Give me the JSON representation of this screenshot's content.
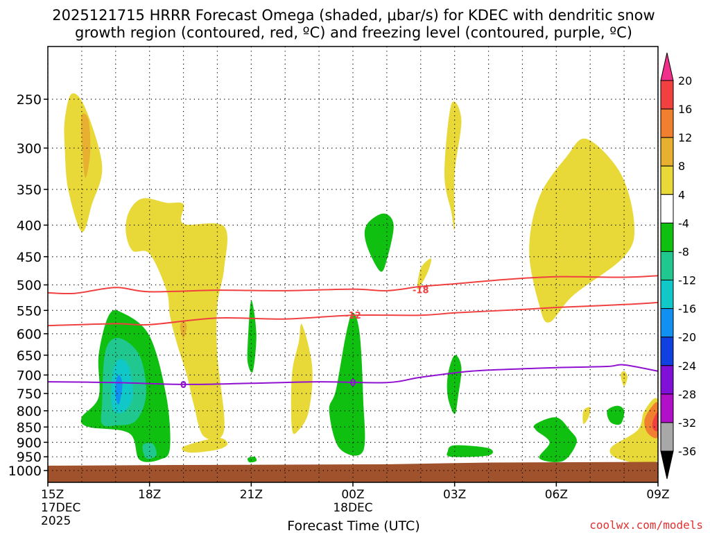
{
  "chart_data": {
    "type": "heatmap",
    "title_line1": "2025121715 HRRR Forecast Omega (shaded, μbar/s) for KDEC with dendritic snow",
    "title_line2": "growth region (contoured, red, ºC) and freezing level (contoured, purple, ºC)",
    "xlabel": "Forecast Time (UTC)",
    "watermark": "coolwx.com/models",
    "x_range_hours": [
      15,
      33
    ],
    "x_ticks": [
      {
        "hour": 15,
        "label": "15Z",
        "sub1": "17DEC",
        "sub2": "2025"
      },
      {
        "hour": 18,
        "label": "18Z"
      },
      {
        "hour": 21,
        "label": "21Z"
      },
      {
        "hour": 24,
        "label": "00Z",
        "sub1": "18DEC"
      },
      {
        "hour": 27,
        "label": "03Z"
      },
      {
        "hour": 30,
        "label": "06Z"
      },
      {
        "hour": 33,
        "label": "09Z"
      }
    ],
    "y_ticks": [
      250,
      300,
      350,
      400,
      450,
      500,
      550,
      600,
      650,
      700,
      750,
      800,
      850,
      900,
      950,
      1000
    ],
    "colorbar": {
      "labels": [
        "20",
        "16",
        "12",
        "8",
        "4",
        "-4",
        "-8",
        "-12",
        "-16",
        "-20",
        "-24",
        "-28",
        "-32",
        "-36"
      ],
      "colors": [
        "#f0308a",
        "#f04040",
        "#f08030",
        "#e8b030",
        "#e8d838",
        "#ffffff",
        "#10c010",
        "#20c890",
        "#10c8c8",
        "#1090f0",
        "#1040e0",
        "#8010d8",
        "#b010c8",
        "#a8a8a8",
        "#000000"
      ]
    },
    "contours": [
      {
        "name": "isotherm-minus18",
        "label": "-18",
        "color": "#f04040",
        "points": [
          [
            15,
            515
          ],
          [
            15.8,
            516
          ],
          [
            17,
            505
          ],
          [
            18,
            513
          ],
          [
            20,
            510
          ],
          [
            22,
            511
          ],
          [
            24,
            508
          ],
          [
            25,
            511
          ],
          [
            26,
            503
          ],
          [
            27,
            498
          ],
          [
            28.5,
            490
          ],
          [
            30,
            485
          ],
          [
            32,
            486
          ],
          [
            33,
            483
          ]
        ],
        "label_at": [
          26,
          509
        ]
      },
      {
        "name": "isotherm-minus12",
        "label": "-12",
        "color": "#f04040",
        "points": [
          [
            15,
            582
          ],
          [
            17,
            578
          ],
          [
            18,
            580
          ],
          [
            20,
            566
          ],
          [
            22,
            568
          ],
          [
            24,
            560
          ],
          [
            26,
            560
          ],
          [
            27,
            555
          ],
          [
            29,
            548
          ],
          [
            30,
            544
          ],
          [
            32,
            538
          ],
          [
            33,
            534
          ]
        ],
        "label_at": [
          24,
          560
        ]
      },
      {
        "name": "freezing-level",
        "label": "0",
        "color": "#9010d0",
        "points": [
          [
            15,
            718
          ],
          [
            17,
            720
          ],
          [
            19,
            725
          ],
          [
            21,
            722
          ],
          [
            23,
            718
          ],
          [
            25,
            720
          ],
          [
            26,
            706
          ],
          [
            27.5,
            690
          ],
          [
            29,
            684
          ],
          [
            30,
            681
          ],
          [
            31.5,
            678
          ],
          [
            32,
            674
          ],
          [
            33,
            690
          ]
        ],
        "label_at": [
          19,
          725
        ],
        "label_at2": [
          24,
          720
        ]
      }
    ],
    "shaded_regions": [
      {
        "value": 4,
        "color": "#e8d838",
        "points": [
          [
            15.5,
            270
          ],
          [
            15.7,
            245
          ],
          [
            16.1,
            258
          ],
          [
            16.6,
            320
          ],
          [
            16.3,
            370
          ],
          [
            16.0,
            410
          ],
          [
            15.6,
            350
          ],
          [
            15.5,
            300
          ]
        ]
      },
      {
        "value": 8,
        "color": "#e8b030",
        "points": [
          [
            16.0,
            290
          ],
          [
            16.0,
            265
          ],
          [
            16.2,
            270
          ],
          [
            16.25,
            305
          ],
          [
            16.1,
            335
          ]
        ]
      },
      {
        "value": 4,
        "color": "#e8d838",
        "points": [
          [
            17.4,
            380
          ],
          [
            17.8,
            362
          ],
          [
            18.5,
            368
          ],
          [
            19.0,
            370
          ],
          [
            19.0,
            398
          ],
          [
            20.2,
            402
          ],
          [
            20.2,
            470
          ],
          [
            20.0,
            540
          ],
          [
            20.0,
            650
          ],
          [
            20.2,
            860
          ],
          [
            19.6,
            880
          ],
          [
            19.3,
            780
          ],
          [
            19.1,
            700
          ],
          [
            18.8,
            620
          ],
          [
            18.6,
            560
          ],
          [
            18.5,
            510
          ],
          [
            18.0,
            445
          ],
          [
            17.5,
            440
          ],
          [
            17.3,
            410
          ]
        ]
      },
      {
        "value": 4,
        "color": "#e8d838",
        "points": [
          [
            19.0,
            915
          ],
          [
            20.0,
            885
          ],
          [
            20.3,
            905
          ],
          [
            20.0,
            925
          ],
          [
            19.2,
            935
          ]
        ]
      },
      {
        "value": 8,
        "color": "#e8b030",
        "points": [
          [
            19.0,
            570
          ],
          [
            19.1,
            585
          ],
          [
            19.0,
            610
          ],
          [
            18.9,
            585
          ]
        ]
      },
      {
        "value": -4,
        "color": "#10c010",
        "points": [
          [
            16.5,
            650
          ],
          [
            16.8,
            560
          ],
          [
            17.2,
            555
          ],
          [
            18.0,
            605
          ],
          [
            18.5,
            760
          ],
          [
            18.6,
            920
          ],
          [
            18.3,
            960
          ],
          [
            17.7,
            960
          ],
          [
            17.4,
            870
          ],
          [
            16.2,
            850
          ],
          [
            16.0,
            820
          ],
          [
            16.5,
            760
          ]
        ]
      },
      {
        "value": -8,
        "color": "#20c890",
        "points": [
          [
            16.6,
            780
          ],
          [
            16.7,
            640
          ],
          [
            17.1,
            610
          ],
          [
            17.7,
            650
          ],
          [
            17.9,
            750
          ],
          [
            17.6,
            830
          ],
          [
            17.0,
            845
          ],
          [
            16.6,
            840
          ]
        ]
      },
      {
        "value": -12,
        "color": "#10c8c8",
        "points": [
          [
            16.9,
            700
          ],
          [
            17.1,
            660
          ],
          [
            17.4,
            680
          ],
          [
            17.5,
            760
          ],
          [
            17.2,
            805
          ],
          [
            16.9,
            790
          ]
        ]
      },
      {
        "value": -16,
        "color": "#1090f0",
        "points": [
          [
            17.0,
            720
          ],
          [
            17.1,
            700
          ],
          [
            17.2,
            725
          ],
          [
            17.1,
            780
          ],
          [
            17.0,
            760
          ]
        ]
      },
      {
        "value": -8,
        "color": "#20c890",
        "points": [
          [
            17.8,
            910
          ],
          [
            18.1,
            905
          ],
          [
            18.2,
            945
          ],
          [
            17.9,
            955
          ]
        ]
      },
      {
        "value": -4,
        "color": "#10c010",
        "points": [
          [
            20.9,
            620
          ],
          [
            21.0,
            530
          ],
          [
            21.15,
            600
          ],
          [
            21.05,
            690
          ],
          [
            20.9,
            670
          ]
        ]
      },
      {
        "value": -4,
        "color": "#10c010",
        "points": [
          [
            20.9,
            955
          ],
          [
            21.1,
            950
          ],
          [
            21.15,
            965
          ],
          [
            20.95,
            970
          ]
        ]
      },
      {
        "value": 4,
        "color": "#e8d838",
        "points": [
          [
            22.2,
            700
          ],
          [
            22.4,
            620
          ],
          [
            22.5,
            580
          ],
          [
            22.8,
            680
          ],
          [
            22.7,
            800
          ],
          [
            22.4,
            860
          ],
          [
            22.2,
            855
          ]
        ]
      },
      {
        "value": -4,
        "color": "#10c010",
        "points": [
          [
            23.5,
            740
          ],
          [
            23.8,
            600
          ],
          [
            24.0,
            555
          ],
          [
            24.2,
            600
          ],
          [
            24.3,
            760
          ],
          [
            24.3,
            930
          ],
          [
            23.6,
            920
          ],
          [
            23.3,
            800
          ]
        ]
      },
      {
        "value": -4,
        "color": "#10c010",
        "points": [
          [
            24.4,
            400
          ],
          [
            24.9,
            383
          ],
          [
            25.2,
            400
          ],
          [
            25.0,
            455
          ],
          [
            24.8,
            475
          ],
          [
            24.4,
            430
          ]
        ]
      },
      {
        "value": 4,
        "color": "#e8d838",
        "points": [
          [
            26.0,
            470
          ],
          [
            26.3,
            453
          ],
          [
            26.25,
            470
          ],
          [
            26.1,
            490
          ],
          [
            25.9,
            508
          ]
        ]
      },
      {
        "value": 4,
        "color": "#e8d838",
        "points": [
          [
            26.7,
            330
          ],
          [
            26.9,
            255
          ],
          [
            27.2,
            270
          ],
          [
            27.0,
            330
          ],
          [
            27.0,
            405
          ],
          [
            26.9,
            380
          ]
        ]
      },
      {
        "value": -4,
        "color": "#10c010",
        "points": [
          [
            26.8,
            700
          ],
          [
            27.0,
            650
          ],
          [
            27.2,
            680
          ],
          [
            27.1,
            760
          ],
          [
            27.0,
            810
          ],
          [
            26.8,
            760
          ]
        ]
      },
      {
        "value": -4,
        "color": "#10c010",
        "points": [
          [
            26.8,
            930
          ],
          [
            27.0,
            910
          ],
          [
            28.0,
            920
          ],
          [
            28.0,
            945
          ],
          [
            26.9,
            950
          ]
        ]
      },
      {
        "value": 4,
        "color": "#e8d838",
        "points": [
          [
            29.2,
            440
          ],
          [
            29.5,
            360
          ],
          [
            30.3,
            310
          ],
          [
            30.9,
            290
          ],
          [
            31.9,
            330
          ],
          [
            32.3,
            400
          ],
          [
            32.0,
            450
          ],
          [
            30.5,
            520
          ],
          [
            29.8,
            575
          ],
          [
            29.5,
            540
          ]
        ]
      },
      {
        "value": -4,
        "color": "#10c010",
        "points": [
          [
            29.4,
            840
          ],
          [
            30.0,
            820
          ],
          [
            30.4,
            860
          ],
          [
            30.6,
            900
          ],
          [
            30.2,
            965
          ],
          [
            29.5,
            955
          ],
          [
            29.8,
            900
          ],
          [
            29.4,
            860
          ]
        ]
      },
      {
        "value": 4,
        "color": "#e8d838",
        "points": [
          [
            31.9,
            700
          ],
          [
            32.0,
            690
          ],
          [
            32.1,
            705
          ],
          [
            32.0,
            730
          ]
        ]
      },
      {
        "value": 4,
        "color": "#e8d838",
        "points": [
          [
            30.8,
            800
          ],
          [
            31.0,
            790
          ],
          [
            30.95,
            820
          ],
          [
            30.8,
            840
          ]
        ]
      },
      {
        "value": -4,
        "color": "#10c010",
        "points": [
          [
            31.5,
            800
          ],
          [
            31.8,
            785
          ],
          [
            32.0,
            800
          ],
          [
            31.9,
            840
          ],
          [
            31.6,
            835
          ]
        ]
      },
      {
        "value": 4,
        "color": "#e8d838",
        "points": [
          [
            31.6,
            920
          ],
          [
            32.4,
            860
          ],
          [
            32.6,
            800
          ],
          [
            33.0,
            770
          ],
          [
            33.0,
            960
          ],
          [
            31.9,
            960
          ]
        ]
      },
      {
        "value": 12,
        "color": "#f08030",
        "points": [
          [
            32.6,
            830
          ],
          [
            32.8,
            790
          ],
          [
            33.0,
            780
          ],
          [
            33.0,
            880
          ],
          [
            32.7,
            870
          ]
        ]
      },
      {
        "value": 16,
        "color": "#f04040",
        "points": [
          [
            32.85,
            830
          ],
          [
            33.0,
            805
          ],
          [
            33.0,
            860
          ],
          [
            32.85,
            855
          ]
        ]
      }
    ],
    "ground": {
      "color": "#a0522d",
      "top_pressure_left": 982,
      "top_pressure_right": 968
    }
  }
}
